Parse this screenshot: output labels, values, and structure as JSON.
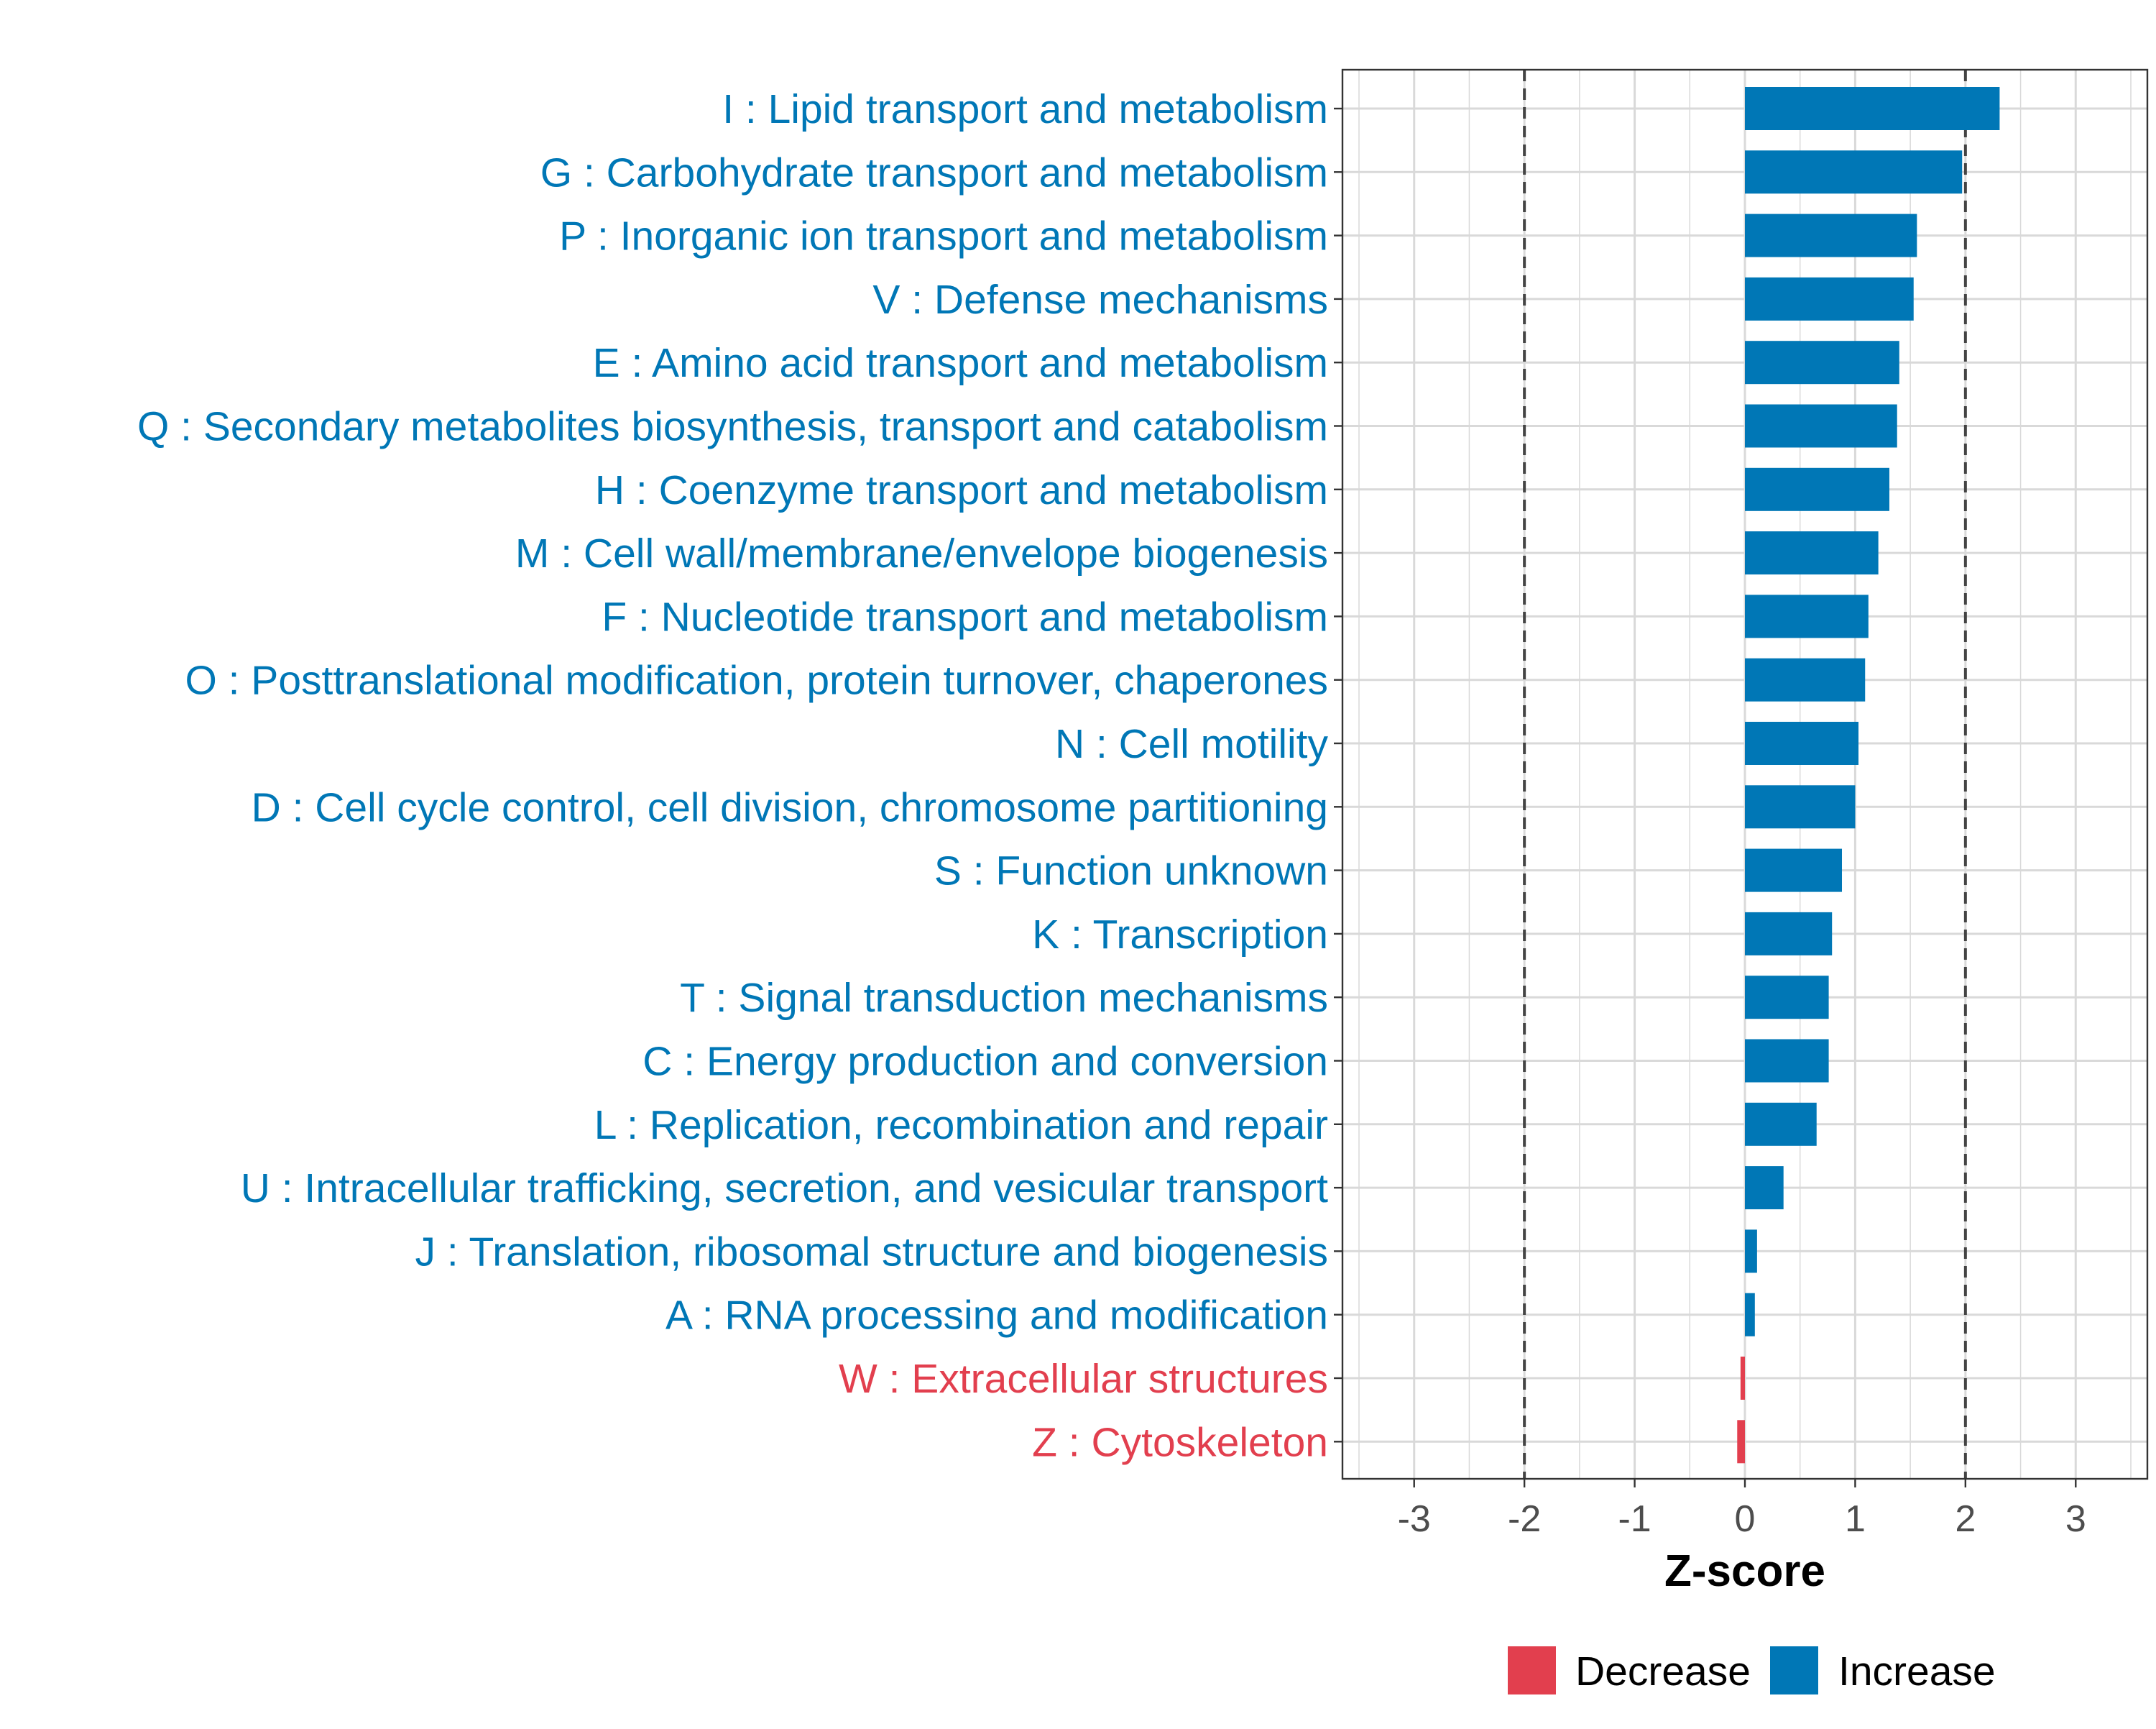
{
  "chart_data": {
    "type": "bar",
    "orientation": "horizontal",
    "title": "",
    "xlabel": "Z-score",
    "ylabel": "",
    "xlim": [
      -3.65,
      3.65
    ],
    "xticks": [
      -3,
      -2,
      -1,
      0,
      1,
      2,
      3
    ],
    "xtick_labels": [
      "-3",
      "-2",
      "-1",
      "0",
      "1",
      "2",
      "3"
    ],
    "threshold_lines": [
      -2,
      2
    ],
    "grid": true,
    "categories": [
      "I : Lipid transport and metabolism",
      "G : Carbohydrate transport and metabolism",
      "P : Inorganic ion transport and metabolism",
      "V : Defense mechanisms",
      "E : Amino acid transport and metabolism",
      "Q : Secondary metabolites biosynthesis, transport and catabolism",
      "H : Coenzyme transport and metabolism",
      "M : Cell wall/membrane/envelope biogenesis",
      "F : Nucleotide transport and metabolism",
      "O : Posttranslational modification, protein turnover, chaperones",
      "N : Cell motility",
      "D : Cell cycle control, cell division, chromosome partitioning",
      "S : Function unknown",
      "K : Transcription",
      "T : Signal transduction mechanisms",
      "C : Energy production and conversion",
      "L : Replication, recombination and repair",
      "U : Intracellular trafficking, secretion, and vesicular transport",
      "J : Translation, ribosomal structure and biogenesis",
      "A : RNA processing and modification",
      "W : Extracellular structures",
      "Z : Cytoskeleton"
    ],
    "values": [
      2.31,
      1.97,
      1.56,
      1.53,
      1.4,
      1.38,
      1.31,
      1.21,
      1.12,
      1.09,
      1.03,
      1.0,
      0.88,
      0.79,
      0.76,
      0.76,
      0.65,
      0.35,
      0.11,
      0.09,
      -0.04,
      -0.07
    ],
    "legend": {
      "placement": "bottom",
      "entries": [
        {
          "label": "Decrease",
          "color": "#E23F4E"
        },
        {
          "label": "Increase",
          "color": "#0077B6"
        }
      ]
    },
    "colors": {
      "decrease": "#E23F4E",
      "increase": "#0077B6",
      "grid": "#D9D9D9",
      "threshold": "#444444",
      "axis_text": "#4D4D4D"
    }
  }
}
